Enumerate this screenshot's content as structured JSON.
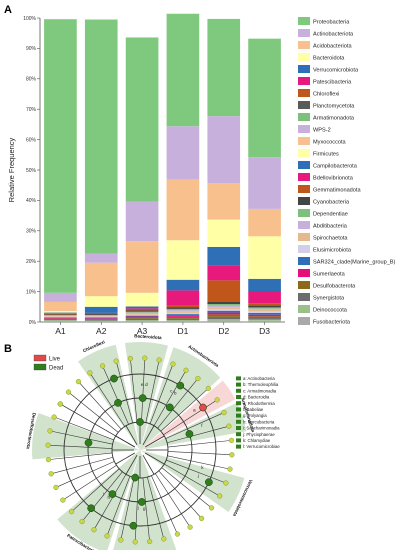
{
  "panel_a_label": "A",
  "panel_b_label": "B",
  "chart_data": [
    {
      "type": "bar",
      "stacked": true,
      "ylabel": "Relative Frequency",
      "ylim": [
        0,
        100
      ],
      "yticks": [
        "0%",
        "10%",
        "20%",
        "30%",
        "40%",
        "50%",
        "60%",
        "70%",
        "80%",
        "90%",
        "100%"
      ],
      "categories": [
        "A1",
        "A2",
        "A3",
        "D1",
        "D2",
        "D3"
      ],
      "series": [
        {
          "name": "Fusobacteriota",
          "color": "#a9a9a9",
          "values": [
            0.3,
            0.3,
            0.3,
            0.3,
            0.5,
            0.4
          ]
        },
        {
          "name": "Deinococcota",
          "color": "#9cc08a",
          "values": [
            0.3,
            0.2,
            0.3,
            0.3,
            0.4,
            0.4
          ]
        },
        {
          "name": "Synergistota",
          "color": "#6c6c6c",
          "values": [
            0.2,
            0.2,
            0.5,
            0.5,
            0.8,
            0.5
          ]
        },
        {
          "name": "Desulfobacterota",
          "color": "#8c6a1a",
          "values": [
            0.3,
            0.3,
            0.4,
            0.6,
            0.8,
            0.6
          ]
        },
        {
          "name": "Sumerlaeota",
          "color": "#e60f7a",
          "values": [
            0.2,
            0.2,
            0.3,
            0.4,
            0.6,
            0.5
          ]
        },
        {
          "name": "SAR324_clade(Marine_group_B)",
          "color": "#2e6fb5",
          "values": [
            0.2,
            0.3,
            0.3,
            0.5,
            0.6,
            0.6
          ]
        },
        {
          "name": "Elusimicrobiota",
          "color": "#d2cfe6",
          "values": [
            0.2,
            0.2,
            0.3,
            0.4,
            0.6,
            0.5
          ]
        },
        {
          "name": "Spirochaetota",
          "color": "#e6b98a",
          "values": [
            0.2,
            0.2,
            0.4,
            0.5,
            0.6,
            0.5
          ]
        },
        {
          "name": "Abditibacteria",
          "color": "#c8b0dc",
          "values": [
            0.2,
            0.2,
            0.3,
            0.4,
            0.5,
            0.4
          ]
        },
        {
          "name": "Dependentiae",
          "color": "#7cc07c",
          "values": [
            0.2,
            0.2,
            0.3,
            0.4,
            0.5,
            0.4
          ]
        },
        {
          "name": "Cyanobacteria",
          "color": "#444444",
          "values": [
            0.2,
            0.3,
            0.4,
            0.6,
            0.8,
            0.6
          ]
        },
        {
          "name": "Gemmatimonadota",
          "color": "#c0561a",
          "values": [
            0.2,
            0.2,
            0.3,
            0.5,
            7.0,
            0.8
          ]
        },
        {
          "name": "Bdellovibrionota",
          "color": "#e8197c",
          "values": [
            0.2,
            0.2,
            0.4,
            5.0,
            5.0,
            4.0
          ]
        },
        {
          "name": "Campilobacterota",
          "color": "#2e6fb5",
          "values": [
            0.2,
            2.0,
            0.6,
            3.5,
            6.0,
            4.0
          ]
        },
        {
          "name": "Firmicutes",
          "color": "#ffffa6",
          "values": [
            0.5,
            3.5,
            4.5,
            13.0,
            9.0,
            14.0
          ]
        },
        {
          "name": "Myxococcota",
          "color": "#f7c08c",
          "values": [
            3.0,
            11.0,
            17.0,
            20.0,
            12.0,
            9.0
          ]
        },
        {
          "name": "WPS-2",
          "color": "#c8b0dc",
          "values": [
            3.0,
            3.0,
            13.0,
            17.5,
            22.0,
            17.0
          ]
        },
        {
          "name": "Proteobacteria",
          "color": "#7fc97f",
          "values": [
            90.0,
            77.0,
            54.0,
            37.0,
            32.0,
            39.0
          ]
        }
      ]
    },
    {
      "type": "cladogram",
      "legend": [
        {
          "name": "Live",
          "color": "#e04a4a"
        },
        {
          "name": "Dead",
          "color": "#2f7d1c"
        }
      ],
      "key": [
        "a: Actinobacteria",
        "b: Thermoleophilia",
        "c: Armatimonadia",
        "d: Bacteroidia",
        "e: Rhodothermia",
        "f: Babeliae",
        "g: Polyangia",
        "h: Parcubacteria",
        "i: Saccharimonadia",
        "j: Phycisphaerae",
        "k: Chlamydiae",
        "l: Verrucomicrobiae"
      ],
      "clade_labels": [
        "Chloroflexi",
        "Bacteroidota",
        "Actinobacteriota",
        "Desulfobacterota",
        "Patescibacteria",
        "Planctomycetota",
        "Verrucomicrobiota",
        "Armatimonadota"
      ],
      "node_letters": [
        "a",
        "b",
        "c",
        "d",
        "e",
        "f",
        "g",
        "h",
        "i",
        "j",
        "k",
        "l"
      ]
    }
  ],
  "legend_a": [
    {
      "name": "Proteobacteria",
      "color": "#7fc97f"
    },
    {
      "name": "Actinobacteriota",
      "color": "#c8b0dc"
    },
    {
      "name": "Acidobacteriota",
      "color": "#f7c08c"
    },
    {
      "name": "Bacteroidota",
      "color": "#ffffa6"
    },
    {
      "name": "Verrucomicrobiota",
      "color": "#2e6fb5"
    },
    {
      "name": "Patescibacteria",
      "color": "#e8197c"
    },
    {
      "name": "Chloroflexi",
      "color": "#c0561a"
    },
    {
      "name": "Planctomycetota",
      "color": "#5a5a5a"
    },
    {
      "name": "Armatimonadota",
      "color": "#7cc07c"
    },
    {
      "name": "WPS-2",
      "color": "#c8b0dc"
    },
    {
      "name": "Myxococcota",
      "color": "#f7c08c"
    },
    {
      "name": "Firmicutes",
      "color": "#ffffa6"
    },
    {
      "name": "Campilobacterota",
      "color": "#2e6fb5"
    },
    {
      "name": "Bdellovibrionota",
      "color": "#e8197c"
    },
    {
      "name": "Gemmatimonadota",
      "color": "#c0561a"
    },
    {
      "name": "Cyanobacteria",
      "color": "#444444"
    },
    {
      "name": "Dependentiae",
      "color": "#7cc07c"
    },
    {
      "name": "Abditibacteria",
      "color": "#c8b0dc"
    },
    {
      "name": "Spirochaetota",
      "color": "#e6b98a"
    },
    {
      "name": "Elusimicrobiota",
      "color": "#d2cfe6"
    },
    {
      "name": "SAR324_clade(Marine_group_B)",
      "color": "#2e6fb5"
    },
    {
      "name": "Sumerlaeota",
      "color": "#e60f7a"
    },
    {
      "name": "Desulfobacterota",
      "color": "#8c6a1a"
    },
    {
      "name": "Synergistota",
      "color": "#6c6c6c"
    },
    {
      "name": "Deinococcota",
      "color": "#9cc08a"
    },
    {
      "name": "Fusobacteriota",
      "color": "#a9a9a9"
    }
  ]
}
